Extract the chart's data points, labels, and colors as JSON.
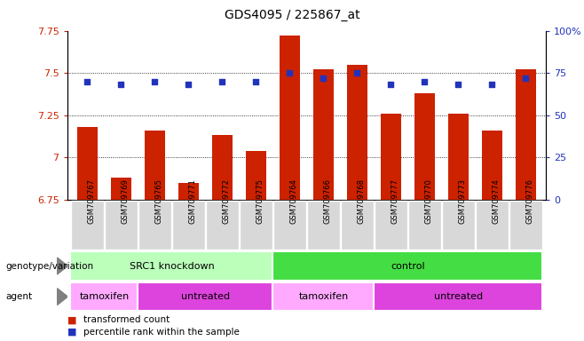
{
  "title": "GDS4095 / 225867_at",
  "samples": [
    "GSM709767",
    "GSM709769",
    "GSM709765",
    "GSM709771",
    "GSM709772",
    "GSM709775",
    "GSM709764",
    "GSM709766",
    "GSM709768",
    "GSM709777",
    "GSM709770",
    "GSM709773",
    "GSM709774",
    "GSM709776"
  ],
  "bar_values": [
    7.18,
    6.88,
    7.16,
    6.85,
    7.13,
    7.04,
    7.72,
    7.52,
    7.55,
    7.26,
    7.38,
    7.26,
    7.16,
    7.52
  ],
  "dot_values_pct": [
    70,
    68,
    70,
    68,
    70,
    70,
    75,
    72,
    75,
    68,
    70,
    68,
    68,
    72
  ],
  "ylim_left": [
    6.75,
    7.75
  ],
  "ylim_right": [
    0,
    100
  ],
  "yticks_left": [
    6.75,
    7.0,
    7.25,
    7.5,
    7.75
  ],
  "yticks_right": [
    0,
    25,
    50,
    75,
    100
  ],
  "ytick_labels_left": [
    "6.75",
    "7",
    "7.25",
    "7.5",
    "7.75"
  ],
  "ytick_labels_right": [
    "0",
    "25",
    "50",
    "75",
    "100%"
  ],
  "bar_color": "#cc2200",
  "dot_color": "#2233bb",
  "plot_bg_color": "#ffffff",
  "xtick_bg_color": "#d8d8d8",
  "genotype_groups": [
    {
      "label": "SRC1 knockdown",
      "start": 0,
      "end": 6,
      "color": "#bbffbb"
    },
    {
      "label": "control",
      "start": 6,
      "end": 14,
      "color": "#44dd44"
    }
  ],
  "agent_groups": [
    {
      "label": "tamoxifen",
      "start": 0,
      "end": 2,
      "color": "#ffaaff"
    },
    {
      "label": "untreated",
      "start": 2,
      "end": 6,
      "color": "#dd44dd"
    },
    {
      "label": "tamoxifen",
      "start": 6,
      "end": 9,
      "color": "#ffaaff"
    },
    {
      "label": "untreated",
      "start": 9,
      "end": 14,
      "color": "#dd44dd"
    }
  ],
  "legend_items": [
    {
      "label": "transformed count",
      "color": "#cc2200"
    },
    {
      "label": "percentile rank within the sample",
      "color": "#2233bb"
    }
  ],
  "left_label_color": "#cc2200",
  "right_label_color": "#2233bb",
  "genotype_label": "genotype/variation",
  "agent_label": "agent",
  "bar_width": 0.6
}
